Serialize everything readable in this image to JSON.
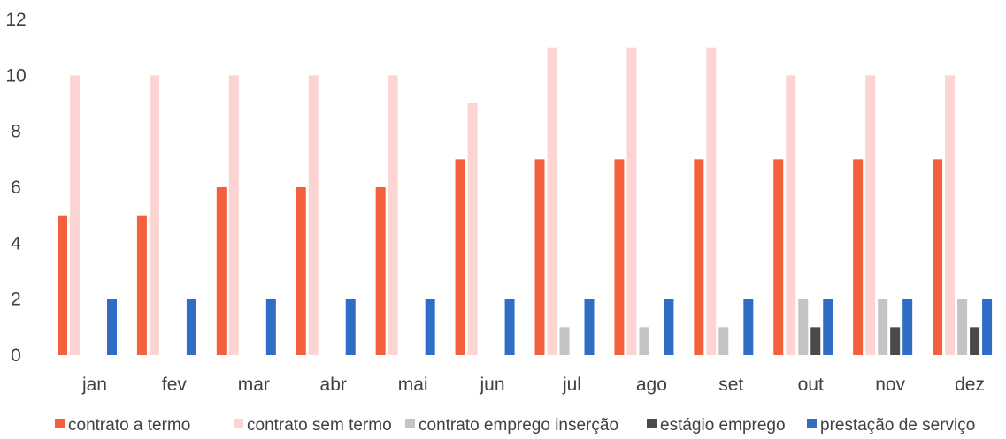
{
  "chart_data": {
    "type": "bar",
    "title": "",
    "xlabel": "",
    "ylabel": "",
    "ylim": [
      0,
      12
    ],
    "yticks": [
      0,
      2,
      4,
      6,
      8,
      10,
      12
    ],
    "grid": false,
    "legend_position": "bottom",
    "categories": [
      "jan",
      "fev",
      "mar",
      "abr",
      "mai",
      "jun",
      "jul",
      "ago",
      "set",
      "out",
      "nov",
      "dez"
    ],
    "series": [
      {
        "name": "contrato a termo",
        "color": "#f4603c",
        "values": [
          5,
          5,
          6,
          6,
          6,
          7,
          7,
          7,
          7,
          7,
          7,
          7
        ]
      },
      {
        "name": "contrato sem termo",
        "color": "#fcd5d2",
        "values": [
          10,
          10,
          10,
          10,
          10,
          9,
          11,
          11,
          11,
          10,
          10,
          10
        ]
      },
      {
        "name": "contrato emprego inserção",
        "color": "#c4c4c4",
        "values": [
          0,
          0,
          0,
          0,
          0,
          0,
          1,
          1,
          1,
          2,
          2,
          2
        ]
      },
      {
        "name": "estágio emprego",
        "color": "#4a4a4a",
        "values": [
          0,
          0,
          0,
          0,
          0,
          0,
          0,
          0,
          0,
          1,
          1,
          1
        ]
      },
      {
        "name": "prestação de serviço",
        "color": "#2f6ec4",
        "values": [
          2,
          2,
          2,
          2,
          2,
          2,
          2,
          2,
          2,
          2,
          2,
          2
        ]
      }
    ]
  }
}
